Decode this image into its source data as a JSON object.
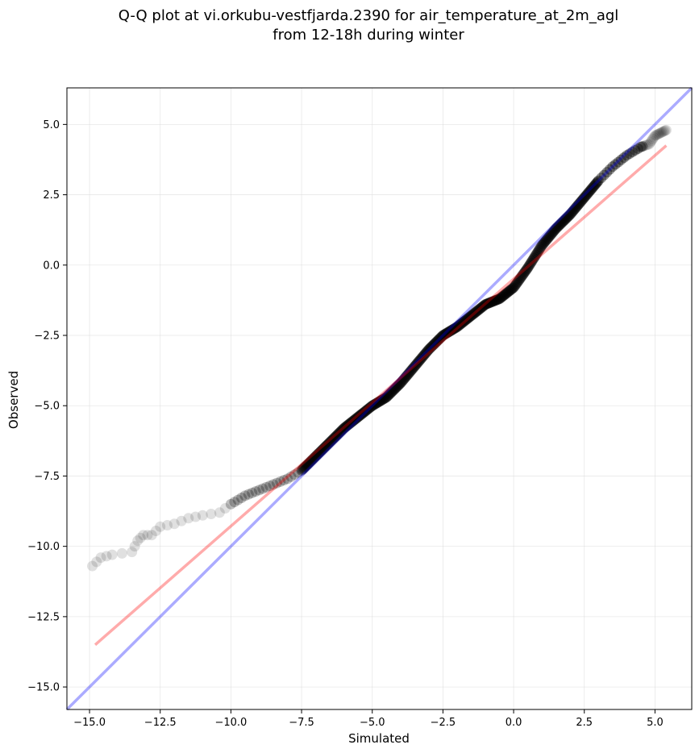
{
  "chart_data": {
    "type": "scatter",
    "title": [
      "Q-Q plot at vi.orkubu-vestfjarda.2390 for air_temperature_at_2m_agl",
      "from 12-18h during winter"
    ],
    "xlabel": "Simulated",
    "ylabel": "Observed",
    "xlim": [
      -15.8,
      6.3
    ],
    "ylim": [
      -15.8,
      6.3
    ],
    "xticks": [
      -15.0,
      -12.5,
      -10.0,
      -7.5,
      -5.0,
      -2.5,
      0.0,
      2.5,
      5.0
    ],
    "yticks": [
      -15.0,
      -12.5,
      -10.0,
      -7.5,
      -5.0,
      -2.5,
      0.0,
      2.5,
      5.0
    ],
    "xtick_labels": [
      "−15.0",
      "−12.5",
      "−10.0",
      "−7.5",
      "−5.0",
      "−2.5",
      "0.0",
      "2.5",
      "5.0"
    ],
    "ytick_labels": [
      "−15.0",
      "−12.5",
      "−10.0",
      "−7.5",
      "−5.0",
      "−2.5",
      "0.0",
      "2.5",
      "5.0"
    ],
    "grid": true,
    "quantile_curve": [
      [
        -14.9,
        -10.7
      ],
      [
        -14.6,
        -10.4
      ],
      [
        -14.2,
        -10.3
      ],
      [
        -13.5,
        -10.2
      ],
      [
        -13.3,
        -9.8
      ],
      [
        -13.1,
        -9.6
      ],
      [
        -12.8,
        -9.6
      ],
      [
        -12.5,
        -9.3
      ],
      [
        -12.0,
        -9.2
      ],
      [
        -11.5,
        -9.0
      ],
      [
        -11.0,
        -8.9
      ],
      [
        -10.4,
        -8.8
      ],
      [
        -10.0,
        -8.5
      ],
      [
        -9.5,
        -8.2
      ],
      [
        -9.0,
        -8.0
      ],
      [
        -8.5,
        -7.8
      ],
      [
        -8.0,
        -7.6
      ],
      [
        -7.5,
        -7.3
      ],
      [
        -7.0,
        -6.8
      ],
      [
        -6.5,
        -6.3
      ],
      [
        -6.0,
        -5.8
      ],
      [
        -5.5,
        -5.4
      ],
      [
        -5.0,
        -5.0
      ],
      [
        -4.5,
        -4.7
      ],
      [
        -4.0,
        -4.2
      ],
      [
        -3.5,
        -3.6
      ],
      [
        -3.0,
        -3.0
      ],
      [
        -2.5,
        -2.5
      ],
      [
        -2.0,
        -2.2
      ],
      [
        -1.5,
        -1.8
      ],
      [
        -1.0,
        -1.4
      ],
      [
        -0.5,
        -1.2
      ],
      [
        0.0,
        -0.8
      ],
      [
        0.5,
        -0.1
      ],
      [
        1.0,
        0.7
      ],
      [
        1.5,
        1.3
      ],
      [
        2.0,
        1.8
      ],
      [
        2.5,
        2.4
      ],
      [
        3.0,
        3.0
      ],
      [
        3.5,
        3.5
      ],
      [
        4.0,
        3.9
      ],
      [
        4.5,
        4.2
      ],
      [
        4.8,
        4.3
      ],
      [
        5.0,
        4.6
      ],
      [
        5.2,
        4.7
      ],
      [
        5.4,
        4.8
      ]
    ],
    "identity_line": {
      "x": [
        -15.8,
        6.3
      ],
      "y": [
        -15.8,
        6.3
      ],
      "color": "#0000ff"
    },
    "fit_line": {
      "x": [
        -14.8,
        5.4
      ],
      "y": [
        -13.5,
        4.25
      ],
      "color": "#ff0000"
    },
    "point_color": "#000000"
  }
}
